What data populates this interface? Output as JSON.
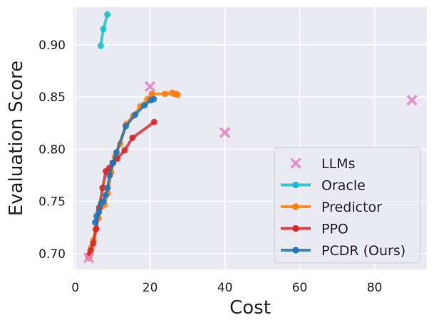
{
  "chart_data": {
    "type": "line",
    "title": "",
    "xlabel": "Cost",
    "ylabel": "Evaluation Score",
    "xlim": [
      -0.5,
      94
    ],
    "ylim": [
      0.685,
      0.936
    ],
    "xticks": [
      0,
      20,
      40,
      60,
      80
    ],
    "yticks": [
      0.7,
      0.75,
      0.8,
      0.85,
      0.9
    ],
    "ytick_labels": [
      "0.70",
      "0.75",
      "0.80",
      "0.85",
      "0.90"
    ],
    "grid": true,
    "legend_position": "lower-right",
    "series": [
      {
        "name": "LLMs",
        "kind": "scatter",
        "marker": "x",
        "color": "#e58ac9",
        "x": [
          3.6,
          20.0,
          40.0,
          90.0
        ],
        "y": [
          0.696,
          0.86,
          0.816,
          0.847
        ]
      },
      {
        "name": "Oracle",
        "kind": "line",
        "color": "#17becf",
        "x": [
          6.8,
          7.5,
          8.6
        ],
        "y": [
          0.899,
          0.915,
          0.929
        ]
      },
      {
        "name": "Predictor",
        "kind": "line",
        "color": "#ff7f0e",
        "x": [
          3.6,
          3.9,
          4.3,
          4.8,
          5.4,
          6.2,
          7.0,
          7.8,
          8.7,
          9.6,
          10.6,
          12.0,
          13.6,
          15.5,
          17.4,
          19.3,
          20.5,
          24.0,
          25.9,
          26.4,
          26.9,
          27.4
        ],
        "y": [
          0.696,
          0.7,
          0.706,
          0.713,
          0.723,
          0.734,
          0.745,
          0.747,
          0.758,
          0.778,
          0.793,
          0.805,
          0.824,
          0.832,
          0.841,
          0.848,
          0.853,
          0.853,
          0.854,
          0.853,
          0.853,
          0.852
        ]
      },
      {
        "name": "PPO",
        "kind": "line",
        "color": "#d62728",
        "x": [
          3.6,
          4.1,
          4.8,
          5.6,
          6.4,
          7.3,
          8.2,
          9.1,
          10.1,
          11.2,
          13.2,
          15.3,
          21.1
        ],
        "y": [
          0.698,
          0.703,
          0.71,
          0.724,
          0.744,
          0.763,
          0.779,
          0.782,
          0.787,
          0.791,
          0.799,
          0.811,
          0.826
        ]
      },
      {
        "name": "PCDR (Ours)",
        "kind": "line",
        "color": "#1f77b4",
        "x": [
          5.3,
          5.7,
          6.3,
          6.9,
          7.5,
          8.1,
          8.6,
          9.2,
          10.0,
          11.0,
          13.5,
          16.0,
          18.5,
          20.3,
          21.0
        ],
        "y": [
          0.73,
          0.736,
          0.74,
          0.748,
          0.75,
          0.756,
          0.763,
          0.775,
          0.787,
          0.797,
          0.822,
          0.833,
          0.842,
          0.847,
          0.848
        ]
      }
    ]
  }
}
